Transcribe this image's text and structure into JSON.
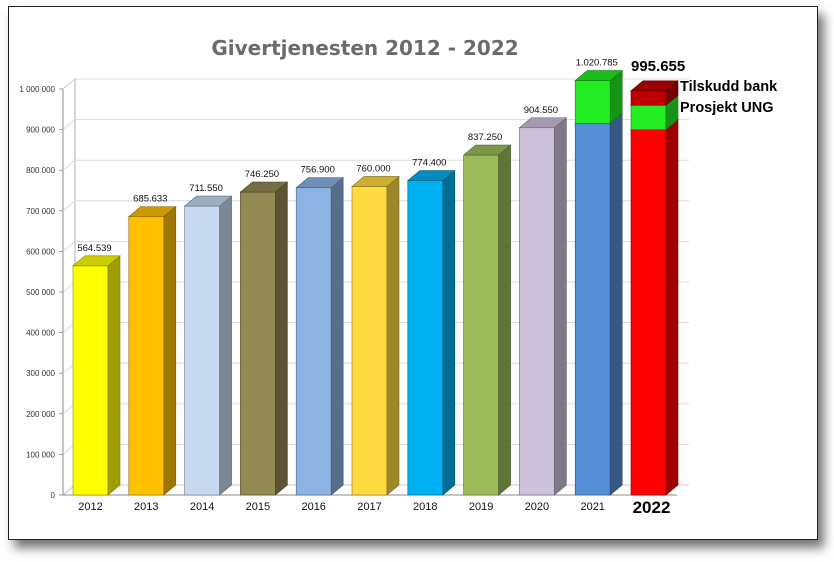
{
  "chart_data": {
    "type": "bar",
    "title": "Givertjenesten 2012 - 2022",
    "categories": [
      "2012",
      "2013",
      "2014",
      "2015",
      "2016",
      "2017",
      "2018",
      "2019",
      "2020",
      "2021",
      "2022"
    ],
    "values": [
      564539,
      685633,
      711550,
      746250,
      756900,
      760000,
      774400,
      837250,
      904550,
      1020785,
      995655
    ],
    "value_labels": [
      "564.539",
      "685.633",
      "711.550",
      "746.250",
      "756.900",
      "760.000",
      "774.400",
      "837.250",
      "904.550",
      "1.020.785",
      "995.655"
    ],
    "bar_colors": [
      "#ffff00",
      "#ffc000",
      "#c6d9f1",
      "#938953",
      "#8db3e2",
      "#ffd940",
      "#00b0f0",
      "#9bbb59",
      "#ccc1da",
      "#558ed5",
      "#ff0000"
    ],
    "stacked_segments": {
      "2021": [
        {
          "label": "",
          "value": 915000,
          "color": "#558ed5"
        },
        {
          "label": "",
          "value": 105785,
          "color": "#22ee22"
        }
      ],
      "2022": [
        {
          "label": "",
          "value": 900000,
          "color": "#ff0000"
        },
        {
          "label": "Prosjekt UNG",
          "value": 60000,
          "color": "#22ee22"
        },
        {
          "label": "Tilskudd bank",
          "value": 35655,
          "color": "#c00000"
        }
      ]
    },
    "annotations": [
      "Tilskudd bank",
      "Prosjekt UNG"
    ],
    "yticks": [
      "0",
      "100 000",
      "200 000",
      "300 000",
      "400 000",
      "500 000",
      "600 000",
      "700 000",
      "800 000",
      "900 000",
      "1 000 000"
    ],
    "ylim": [
      0,
      1000000
    ],
    "xlabel": "",
    "ylabel": "",
    "grid": true,
    "legend": "none"
  }
}
